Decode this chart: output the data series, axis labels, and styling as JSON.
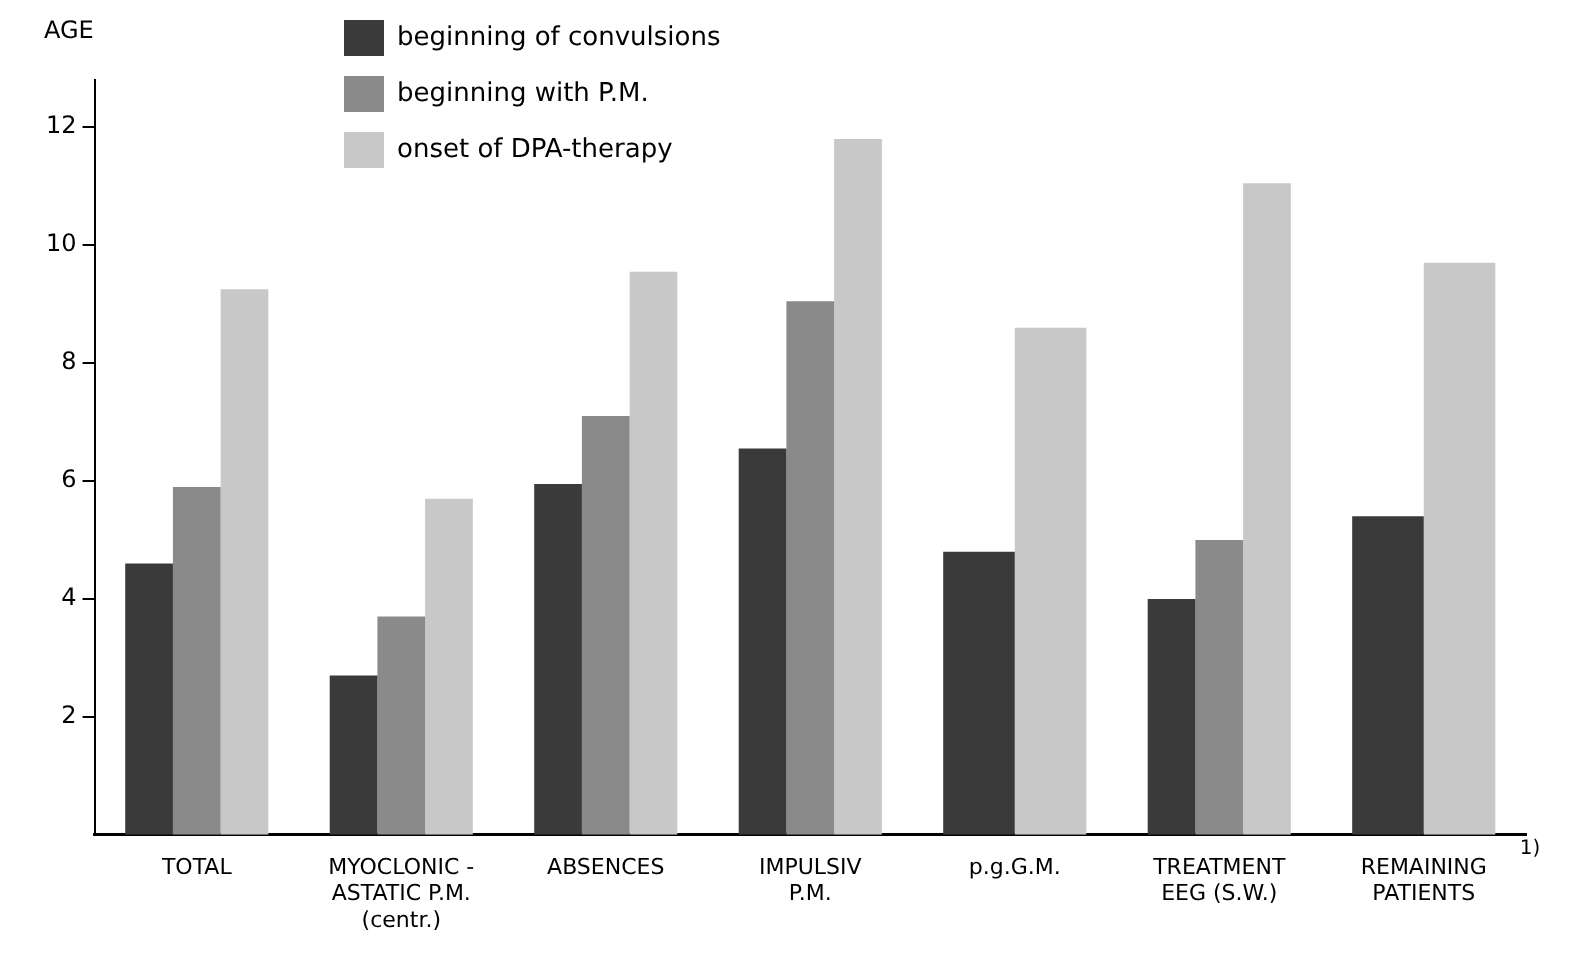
{
  "chart_data": {
    "type": "bar",
    "ylabel": "AGE",
    "categories": [
      "TOTAL",
      "MYOCLONIC -\nASTATIC P.M.\n(centr.)",
      "ABSENCES",
      "IMPULSIV\nP.M.",
      "p.g.G.M.",
      "TREATMENT\nEEG (S.W.)",
      "REMAINING\nPATIENTS"
    ],
    "series": [
      {
        "name": "beginning of convulsions",
        "color": "#3a3a3a",
        "values": [
          4.6,
          2.7,
          5.95,
          6.55,
          4.8,
          4.0,
          5.4
        ]
      },
      {
        "name": "beginning with P.M.",
        "color": "#8a8a8a",
        "values": [
          5.9,
          3.7,
          7.1,
          9.05,
          null,
          5.0,
          null
        ]
      },
      {
        "name": "onset of DPA-therapy",
        "color": "#c8c8c8",
        "values": [
          9.25,
          5.7,
          9.55,
          11.8,
          8.6,
          11.05,
          9.7
        ]
      }
    ],
    "ylim": [
      0,
      12.8
    ],
    "yticks": [
      2,
      4,
      6,
      8,
      10,
      12
    ],
    "grid": false,
    "legend": "top",
    "annotations": [
      "1)"
    ]
  }
}
